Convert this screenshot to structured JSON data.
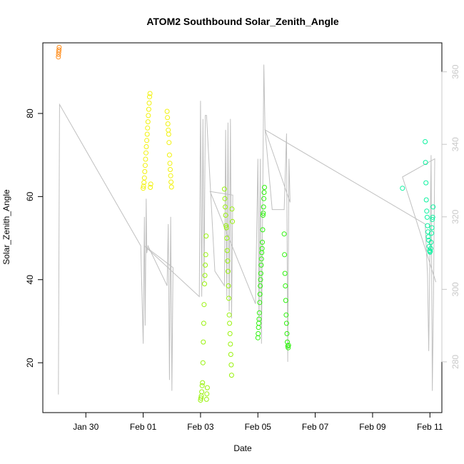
{
  "chart_data": {
    "type": "scatter",
    "title": "ATOM2 Southbound Solar_Zenith_Angle",
    "xlabel": "Date",
    "ylabel": "Solar_Zenith_Angle",
    "x_axis": {
      "unit": "day",
      "range": [
        "2024-01-28T12:00",
        "2024-02-11T10:00"
      ],
      "ticks": [
        {
          "date": "2024-01-30",
          "label": "Jan 30"
        },
        {
          "date": "2024-02-01",
          "label": "Feb 01"
        },
        {
          "date": "2024-02-03",
          "label": "Feb 03"
        },
        {
          "date": "2024-02-05",
          "label": "Feb 05"
        },
        {
          "date": "2024-02-07",
          "label": "Feb 07"
        },
        {
          "date": "2024-02-09",
          "label": "Feb 09"
        },
        {
          "date": "2024-02-11",
          "label": "Feb 11"
        }
      ]
    },
    "ylim": [
      8,
      97
    ],
    "yticks": [
      20,
      40,
      60,
      80
    ],
    "ylim_right": [
      266,
      368
    ],
    "yticks_right": [
      280,
      300,
      320,
      340,
      360
    ],
    "grid": false,
    "right_axis_color": "#c8c8c8",
    "line_series": {
      "color": "#c0c0c0",
      "axis": "right",
      "points": [
        [
          "2024-01-29T01:00",
          271
        ],
        [
          "2024-01-29T02:00",
          351
        ],
        [
          "2024-01-31T22:00",
          312
        ],
        [
          "2024-02-01T00:00",
          285
        ],
        [
          "2024-02-01T01:00",
          320
        ],
        [
          "2024-02-01T01:40",
          290
        ],
        [
          "2024-02-01T02:30",
          325
        ],
        [
          "2024-02-01T03:00",
          310
        ],
        [
          "2024-02-01T04:00",
          312
        ],
        [
          "2024-02-01T20:00",
          301
        ],
        [
          "2024-02-01T21:00",
          318
        ],
        [
          "2024-02-01T22:00",
          275
        ],
        [
          "2024-02-01T23:00",
          320
        ],
        [
          "2024-02-02T00:00",
          272
        ],
        [
          "2024-02-02T01:00",
          306
        ],
        [
          "2024-02-01T01:00",
          312
        ],
        [
          "2024-02-02T23:00",
          298
        ],
        [
          "2024-02-03T00:00",
          352
        ],
        [
          "2024-02-03T01:00",
          298
        ],
        [
          "2024-02-03T02:00",
          347
        ],
        [
          "2024-02-03T03:00",
          302
        ],
        [
          "2024-02-03T04:00",
          348
        ],
        [
          "2024-02-03T05:00",
          348
        ],
        [
          "2024-02-03T12:00",
          305
        ],
        [
          "2024-02-03T20:00",
          301
        ],
        [
          "2024-02-03T21:00",
          344
        ],
        [
          "2024-02-03T22:00",
          298
        ],
        [
          "2024-02-03T23:00",
          346
        ],
        [
          "2024-02-04T00:00",
          294
        ],
        [
          "2024-02-04T01:00",
          347
        ],
        [
          "2024-02-04T02:00",
          292
        ],
        [
          "2024-02-04T03:00",
          326
        ],
        [
          "2024-02-03T08:00",
          327
        ],
        [
          "2024-02-04T22:00",
          296
        ],
        [
          "2024-02-05T00:00",
          336
        ],
        [
          "2024-02-05T01:00",
          291
        ],
        [
          "2024-02-05T02:00",
          336
        ],
        [
          "2024-02-05T03:00",
          285
        ],
        [
          "2024-02-05T05:00",
          362
        ],
        [
          "2024-02-05T06:00",
          344
        ],
        [
          "2024-02-05T12:00",
          322
        ],
        [
          "2024-02-05T22:00",
          322
        ],
        [
          "2024-02-06T00:00",
          343
        ],
        [
          "2024-02-06T01:00",
          280
        ],
        [
          "2024-02-06T02:00",
          336
        ],
        [
          "2024-02-06T03:00",
          324
        ],
        [
          "2024-02-05T06:00",
          344
        ],
        [
          "2024-02-10T20:00",
          318
        ],
        [
          "2024-02-10T22:00",
          304
        ],
        [
          "2024-02-10T23:00",
          283
        ],
        [
          "2024-02-11T01:00",
          337
        ],
        [
          "2024-02-11T02:00",
          272
        ],
        [
          "2024-02-11T03:00",
          298
        ],
        [
          "2024-02-11T04:00",
          336
        ],
        [
          "2024-02-10T01:00",
          331
        ],
        [
          "2024-02-11T05:00",
          302
        ]
      ]
    },
    "series": [
      {
        "color": "#ff8c1a",
        "x": [
          "2024-01-29T01:00",
          "2024-01-29T01:10",
          "2024-01-29T01:20",
          "2024-01-29T01:30",
          "2024-01-29T01:40"
        ],
        "y": [
          93.6,
          94.2,
          94.8,
          95.3,
          95.9
        ]
      },
      {
        "color": "#f2f20d",
        "x": [
          "2024-02-01T00:00",
          "2024-02-01T00:20",
          "2024-02-01T00:40",
          "2024-02-01T01:00",
          "2024-02-01T01:20",
          "2024-02-01T01:40",
          "2024-02-01T02:00",
          "2024-02-01T02:20",
          "2024-02-01T02:40",
          "2024-02-01T03:00",
          "2024-02-01T03:20",
          "2024-02-01T03:40",
          "2024-02-01T04:00",
          "2024-02-01T04:20",
          "2024-02-01T04:40",
          "2024-02-01T05:00",
          "2024-02-01T05:20",
          "2024-02-01T05:40",
          "2024-02-01T06:00",
          "2024-02-01T06:20",
          "2024-02-01T20:00",
          "2024-02-01T20:20",
          "2024-02-01T20:40",
          "2024-02-01T21:00",
          "2024-02-01T21:20",
          "2024-02-01T21:40",
          "2024-02-01T22:00",
          "2024-02-01T22:20",
          "2024-02-01T22:40",
          "2024-02-01T23:00",
          "2024-02-01T23:20",
          "2024-02-01T23:40"
        ],
        "y": [
          62.0,
          62.5,
          63.4,
          64.5,
          66.0,
          67.5,
          69.0,
          70.5,
          72.0,
          73.5,
          75.0,
          76.5,
          78.0,
          79.5,
          81.0,
          82.5,
          84.0,
          84.8,
          62.2,
          63.0,
          80.5,
          79.0,
          77.5,
          76.0,
          75.0,
          73.0,
          70.0,
          68.0,
          66.5,
          65.0,
          63.5,
          62.3
        ]
      },
      {
        "color": "#99f20d",
        "x": [
          "2024-02-03T00:00",
          "2024-02-03T00:20",
          "2024-02-03T00:40",
          "2024-02-03T01:00",
          "2024-02-03T01:20",
          "2024-02-03T01:40",
          "2024-02-03T02:00",
          "2024-02-03T02:20",
          "2024-02-03T02:40",
          "2024-02-03T03:00",
          "2024-02-03T03:20",
          "2024-02-03T03:40",
          "2024-02-03T04:00",
          "2024-02-03T04:20",
          "2024-02-03T04:40",
          "2024-02-03T05:00",
          "2024-02-03T05:20",
          "2024-02-03T05:40",
          "2024-02-03T20:00",
          "2024-02-03T20:20",
          "2024-02-03T20:40",
          "2024-02-03T21:00",
          "2024-02-03T21:20",
          "2024-02-03T21:40",
          "2024-02-03T22:00",
          "2024-02-03T22:20",
          "2024-02-03T22:40",
          "2024-02-03T23:00",
          "2024-02-03T23:20",
          "2024-02-03T23:40",
          "2024-02-04T00:00",
          "2024-02-04T00:20",
          "2024-02-04T00:40",
          "2024-02-04T01:00",
          "2024-02-04T01:20",
          "2024-02-04T01:40",
          "2024-02-04T02:00",
          "2024-02-04T02:20",
          "2024-02-04T02:40"
        ],
        "y": [
          11.0,
          11.5,
          12.0,
          13.0,
          14.5,
          15.2,
          20.0,
          25.0,
          29.5,
          34.0,
          39.0,
          41.0,
          43.5,
          46.0,
          50.5,
          11.2,
          12.5,
          14.0,
          61.8,
          59.5,
          57.5,
          55.5,
          53.0,
          52.5,
          50.0,
          47.0,
          44.5,
          42.0,
          38.5,
          35.5,
          31.5,
          29.5,
          27.0,
          24.5,
          22.0,
          19.5,
          17.0,
          57.0,
          54.0
        ]
      },
      {
        "color": "#2ef20d",
        "x": [
          "2024-02-05T00:00",
          "2024-02-05T00:15",
          "2024-02-05T00:30",
          "2024-02-05T00:45",
          "2024-02-05T01:00",
          "2024-02-05T01:15",
          "2024-02-05T01:30",
          "2024-02-05T01:45",
          "2024-02-05T02:00",
          "2024-02-05T02:15",
          "2024-02-05T02:30",
          "2024-02-05T02:45",
          "2024-02-05T03:00",
          "2024-02-05T03:15",
          "2024-02-05T03:30",
          "2024-02-05T03:45",
          "2024-02-05T04:00",
          "2024-02-05T04:15",
          "2024-02-05T04:30",
          "2024-02-05T04:45",
          "2024-02-05T05:00",
          "2024-02-05T05:15",
          "2024-02-05T05:30",
          "2024-02-05T22:00",
          "2024-02-05T22:20",
          "2024-02-05T22:40",
          "2024-02-05T23:00",
          "2024-02-05T23:20",
          "2024-02-05T23:40",
          "2024-02-06T00:00",
          "2024-02-06T00:20",
          "2024-02-06T00:40",
          "2024-02-06T01:00",
          "2024-02-06T01:20",
          "2024-02-06T01:40"
        ],
        "y": [
          26.0,
          27.0,
          28.5,
          29.5,
          30.5,
          32.0,
          34.5,
          36.5,
          38.5,
          40.0,
          41.5,
          43.5,
          45.0,
          46.5,
          47.5,
          49.0,
          52.0,
          55.5,
          56.0,
          57.5,
          59.5,
          61.0,
          62.2,
          51.0,
          46.0,
          41.5,
          38.5,
          35.0,
          31.5,
          29.5,
          27.0,
          25.0,
          24.0,
          23.6,
          24.2
        ]
      },
      {
        "color": "#0df2a0",
        "x": [
          "2024-02-10T01:00",
          "2024-02-10T20:00",
          "2024-02-10T20:20",
          "2024-02-10T20:40",
          "2024-02-10T21:00",
          "2024-02-10T21:20",
          "2024-02-10T21:40",
          "2024-02-10T22:00",
          "2024-02-10T22:20",
          "2024-02-10T22:40",
          "2024-02-10T23:00",
          "2024-02-10T23:20",
          "2024-02-10T23:40",
          "2024-02-11T00:00",
          "2024-02-11T00:20",
          "2024-02-11T00:40",
          "2024-02-11T01:00",
          "2024-02-11T01:20",
          "2024-02-11T01:40",
          "2024-02-11T02:00",
          "2024-02-11T02:20",
          "2024-02-11T02:40"
        ],
        "y": [
          62.0,
          73.2,
          68.2,
          63.3,
          59.2,
          56.5,
          55.0,
          53.0,
          51.5,
          50.3,
          49.5,
          48.0,
          47.0,
          46.6,
          46.8,
          47.5,
          49.0,
          51.2,
          52.5,
          54.5,
          55.0,
          57.5
        ]
      }
    ]
  }
}
